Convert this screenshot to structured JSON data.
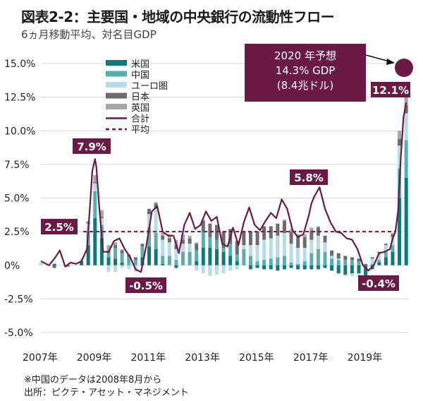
{
  "title": "図表2-2：主要国・地域の中央銀行の流動性フロー",
  "subtitle": "6ヵ月移動平均、対名目GDP",
  "note": "※中国のデータは2008年8月から",
  "source": "出所：ピクテ・アセット・マネジメント",
  "chart_data": {
    "type": "bar",
    "y_tick_labels": [
      "15.0%",
      "12.5%",
      "10.0%",
      "7.5%",
      "5.0%",
      "2.5%",
      "0%",
      "-2.5%",
      "-5.0%"
    ],
    "x_tick_labels": [
      "2007年",
      "2009年",
      "2011年",
      "2013年",
      "2015年",
      "2017年",
      "2019年"
    ],
    "ylim": [
      -5.0,
      15.0
    ],
    "xlim": [
      2007.0,
      2020.6
    ],
    "grid": true,
    "legend_position": "top-left",
    "legend": [
      {
        "name": "米国",
        "kind": "bar",
        "color": "#0e7a77"
      },
      {
        "name": "中国",
        "kind": "bar",
        "color": "#5aaeb0"
      },
      {
        "name": "ユーロ圏",
        "kind": "bar",
        "color": "#b6dde3"
      },
      {
        "name": "日本",
        "kind": "bar",
        "color": "#6c6c6c"
      },
      {
        "name": "英国",
        "kind": "bar",
        "color": "#a6a6a6"
      },
      {
        "name": "合計",
        "kind": "line",
        "color": "#6a1a45"
      },
      {
        "name": "平均",
        "kind": "dash",
        "color": "#6a1a45"
      }
    ],
    "total_line": {
      "x": [
        2007.0,
        2007.3,
        2007.5,
        2007.7,
        2007.9,
        2008.1,
        2008.3,
        2008.5,
        2008.7,
        2008.8,
        2008.9,
        2009.0,
        2009.05,
        2009.15,
        2009.3,
        2009.5,
        2009.7,
        2009.9,
        2010.1,
        2010.3,
        2010.5,
        2010.7,
        2010.9,
        2011.1,
        2011.3,
        2011.5,
        2011.7,
        2011.9,
        2012.1,
        2012.3,
        2012.5,
        2012.7,
        2012.9,
        2013.1,
        2013.3,
        2013.5,
        2013.7,
        2013.9,
        2014.1,
        2014.3,
        2014.5,
        2014.7,
        2014.9,
        2015.1,
        2015.3,
        2015.5,
        2015.7,
        2015.9,
        2016.1,
        2016.3,
        2016.5,
        2016.7,
        2016.9,
        2017.0,
        2017.1,
        2017.3,
        2017.5,
        2017.7,
        2017.9,
        2018.1,
        2018.3,
        2018.5,
        2018.7,
        2018.9,
        2019.1,
        2019.3,
        2019.5,
        2019.7,
        2019.9,
        2020.0,
        2020.1,
        2020.2,
        2020.3,
        2020.4,
        2020.5
      ],
      "y": [
        0.3,
        0.0,
        0.5,
        1.1,
        -0.1,
        0.2,
        0.1,
        0.3,
        1.2,
        4.0,
        7.0,
        7.9,
        7.3,
        4.5,
        1.0,
        1.0,
        1.8,
        2.0,
        1.2,
        0.6,
        -0.3,
        -0.5,
        1.5,
        4.0,
        4.4,
        2.5,
        2.2,
        2.2,
        0.9,
        3.0,
        3.9,
        2.7,
        3.0,
        4.0,
        3.3,
        3.6,
        1.6,
        1.4,
        2.8,
        1.5,
        3.2,
        4.3,
        3.0,
        2.6,
        3.3,
        3.9,
        3.5,
        4.9,
        4.2,
        2.6,
        2.1,
        2.3,
        3.7,
        4.6,
        5.1,
        5.8,
        4.2,
        3.2,
        2.5,
        2.4,
        2.0,
        1.9,
        1.2,
        0.0,
        -0.4,
        0.0,
        0.9,
        1.0,
        1.2,
        2.0,
        2.5,
        4.0,
        8.0,
        11.0,
        12.1
      ]
    },
    "bars_years": [
      2007.0,
      2007.5,
      2008.0,
      2008.5,
      2008.75,
      2009.0,
      2009.25,
      2009.5,
      2009.75,
      2010.0,
      2010.25,
      2010.5,
      2010.75,
      2011.0,
      2011.25,
      2011.5,
      2011.75,
      2012.0,
      2012.25,
      2012.5,
      2012.75,
      2013.0,
      2013.25,
      2013.5,
      2013.75,
      2014.0,
      2014.25,
      2014.5,
      2014.75,
      2015.0,
      2015.25,
      2015.5,
      2015.75,
      2016.0,
      2016.25,
      2016.5,
      2016.75,
      2017.0,
      2017.25,
      2017.5,
      2017.75,
      2018.0,
      2018.25,
      2018.5,
      2018.75,
      2019.0,
      2019.25,
      2019.5,
      2019.75,
      2020.0,
      2020.25,
      2020.5
    ],
    "series": [
      {
        "name": "米国",
        "values": [
          0.0,
          0.1,
          0.0,
          0.3,
          1.5,
          3.5,
          2.0,
          0.6,
          0.5,
          0.2,
          0.0,
          0.0,
          0.6,
          1.4,
          1.2,
          0.1,
          0.0,
          -0.2,
          0.0,
          0.0,
          0.3,
          1.3,
          1.3,
          1.2,
          1.0,
          0.7,
          0.3,
          0.0,
          -0.3,
          -0.2,
          -0.3,
          -0.3,
          -0.4,
          -0.3,
          -0.2,
          -0.3,
          -0.3,
          -0.3,
          -0.3,
          -0.2,
          -0.4,
          -0.6,
          -0.7,
          -0.6,
          -0.6,
          -0.8,
          -0.3,
          0.2,
          0.6,
          1.0,
          5.0,
          6.5
        ]
      },
      {
        "name": "中国",
        "values": [
          0.0,
          0.0,
          0.0,
          0.0,
          1.0,
          2.0,
          1.0,
          0.3,
          0.8,
          0.7,
          0.6,
          0.4,
          0.8,
          1.4,
          1.2,
          0.6,
          0.7,
          0.4,
          1.0,
          1.0,
          0.8,
          1.2,
          0.8,
          0.7,
          0.3,
          0.9,
          0.5,
          1.2,
          0.7,
          0.3,
          0.4,
          0.5,
          0.6,
          0.7,
          0.2,
          0.1,
          0.3,
          0.9,
          1.2,
          1.0,
          0.5,
          0.4,
          0.4,
          0.4,
          0.3,
          -0.1,
          0.1,
          0.2,
          0.4,
          0.5,
          2.2,
          2.8
        ]
      },
      {
        "name": "ユーロ圏",
        "values": [
          0.2,
          0.1,
          0.1,
          0.2,
          0.6,
          0.6,
          0.5,
          -0.5,
          -0.5,
          -0.2,
          -0.3,
          -0.5,
          0.0,
          1.0,
          1.8,
          1.2,
          1.0,
          0.8,
          0.6,
          0.6,
          -0.4,
          -0.6,
          -0.8,
          -0.7,
          -0.6,
          -0.4,
          -0.3,
          0.3,
          0.8,
          1.2,
          1.5,
          1.5,
          1.6,
          1.7,
          1.4,
          1.2,
          1.0,
          1.0,
          1.0,
          0.7,
          0.2,
          0.1,
          -0.1,
          -0.2,
          -0.2,
          0.0,
          0.4,
          0.5,
          0.5,
          0.6,
          1.7,
          2.0
        ]
      },
      {
        "name": "日本",
        "values": [
          0.0,
          -0.2,
          -0.1,
          0.0,
          0.1,
          0.1,
          0.1,
          0.2,
          0.2,
          0.2,
          0.2,
          0.2,
          0.2,
          0.4,
          0.4,
          0.3,
          0.3,
          0.3,
          0.3,
          0.4,
          0.5,
          0.8,
          1.0,
          1.1,
          1.2,
          1.1,
          1.0,
          1.0,
          1.0,
          1.0,
          1.0,
          0.9,
          0.9,
          0.9,
          0.9,
          0.8,
          0.8,
          0.7,
          0.6,
          0.5,
          0.4,
          0.4,
          0.3,
          0.2,
          0.2,
          0.1,
          0.1,
          0.1,
          0.1,
          0.2,
          0.5,
          0.6
        ]
      },
      {
        "name": "英国",
        "values": [
          0.0,
          0.0,
          0.0,
          0.0,
          0.1,
          0.5,
          0.5,
          0.4,
          0.2,
          0.1,
          0.0,
          0.0,
          0.0,
          0.0,
          0.1,
          0.2,
          0.3,
          0.4,
          0.4,
          0.2,
          0.1,
          0.1,
          0.0,
          0.0,
          0.0,
          0.0,
          0.0,
          0.0,
          0.0,
          0.0,
          0.0,
          0.0,
          0.0,
          0.1,
          0.2,
          0.2,
          0.2,
          0.2,
          0.1,
          0.0,
          0.0,
          0.0,
          0.0,
          0.0,
          0.0,
          0.0,
          0.0,
          0.0,
          0.0,
          0.1,
          0.6,
          0.7
        ]
      }
    ],
    "average": 2.5,
    "annotations": [
      {
        "label": "7.9%",
        "x": 2009.0,
        "y": 7.9
      },
      {
        "label": "2.5%",
        "x": 2007.4,
        "y": 2.5
      },
      {
        "label": "-0.5%",
        "x": 2010.7,
        "y": -0.5
      },
      {
        "label": "5.8%",
        "x": 2017.3,
        "y": 5.8
      },
      {
        "label": "-0.4%",
        "x": 2019.1,
        "y": -0.4
      },
      {
        "label": "12.1%",
        "x": 2020.5,
        "y": 12.1
      }
    ],
    "forecast": {
      "line1": "2020 年予想",
      "line2": "14.3% GDP",
      "line3": "(8.4兆ドル)",
      "value": 14.3
    }
  }
}
